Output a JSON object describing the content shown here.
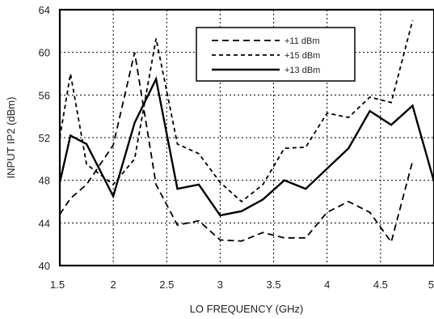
{
  "chart_data": {
    "type": "line",
    "title": "",
    "xlabel": "LO FREQUENCY (GHz)",
    "ylabel": "INPUT IP2 (dBm)",
    "xlim": [
      1.5,
      5
    ],
    "ylim": [
      40,
      64
    ],
    "xticks": [
      1.5,
      2,
      2.5,
      3,
      3.5,
      4,
      4.5,
      5
    ],
    "xtick_labels": [
      "1.5",
      "2",
      "2.5",
      "3",
      "3.5",
      "4",
      "4.5",
      "5"
    ],
    "yticks": [
      40,
      44,
      48,
      52,
      56,
      60,
      64
    ],
    "ytick_labels": [
      "40",
      "44",
      "48",
      "52",
      "56",
      "60",
      "64"
    ],
    "grid": true,
    "legend_position": "top-center",
    "x": [
      1.5,
      1.6,
      1.75,
      2.0,
      2.2,
      2.4,
      2.6,
      2.8,
      3.0,
      3.2,
      3.4,
      3.6,
      3.8,
      4.0,
      4.2,
      4.4,
      4.6,
      4.8,
      5.0
    ],
    "series": [
      {
        "name": "+11 dBm",
        "style": "dashed-long",
        "color": "#000000",
        "values": [
          44.8,
          46.3,
          47.6,
          51.3,
          60.0,
          47.6,
          43.8,
          44.2,
          42.4,
          42.3,
          43.1,
          42.6,
          42.6,
          45.0,
          46.0,
          45.0,
          42.2,
          49.8,
          null
        ]
      },
      {
        "name": "+15 dBm",
        "style": "dashed-short",
        "color": "#000000",
        "values": [
          52.0,
          58.0,
          49.5,
          47.6,
          50.0,
          61.3,
          51.4,
          50.5,
          47.8,
          46.0,
          47.6,
          51.0,
          51.1,
          54.3,
          53.9,
          55.8,
          55.3,
          63.0,
          null
        ]
      },
      {
        "name": "+13 dBm",
        "style": "solid",
        "color": "#000000",
        "values": [
          47.8,
          52.2,
          51.4,
          46.5,
          53.4,
          57.5,
          47.2,
          47.6,
          44.7,
          45.1,
          46.2,
          48.0,
          47.2,
          49.1,
          51.0,
          54.5,
          53.2,
          55.0,
          47.9
        ]
      }
    ]
  }
}
